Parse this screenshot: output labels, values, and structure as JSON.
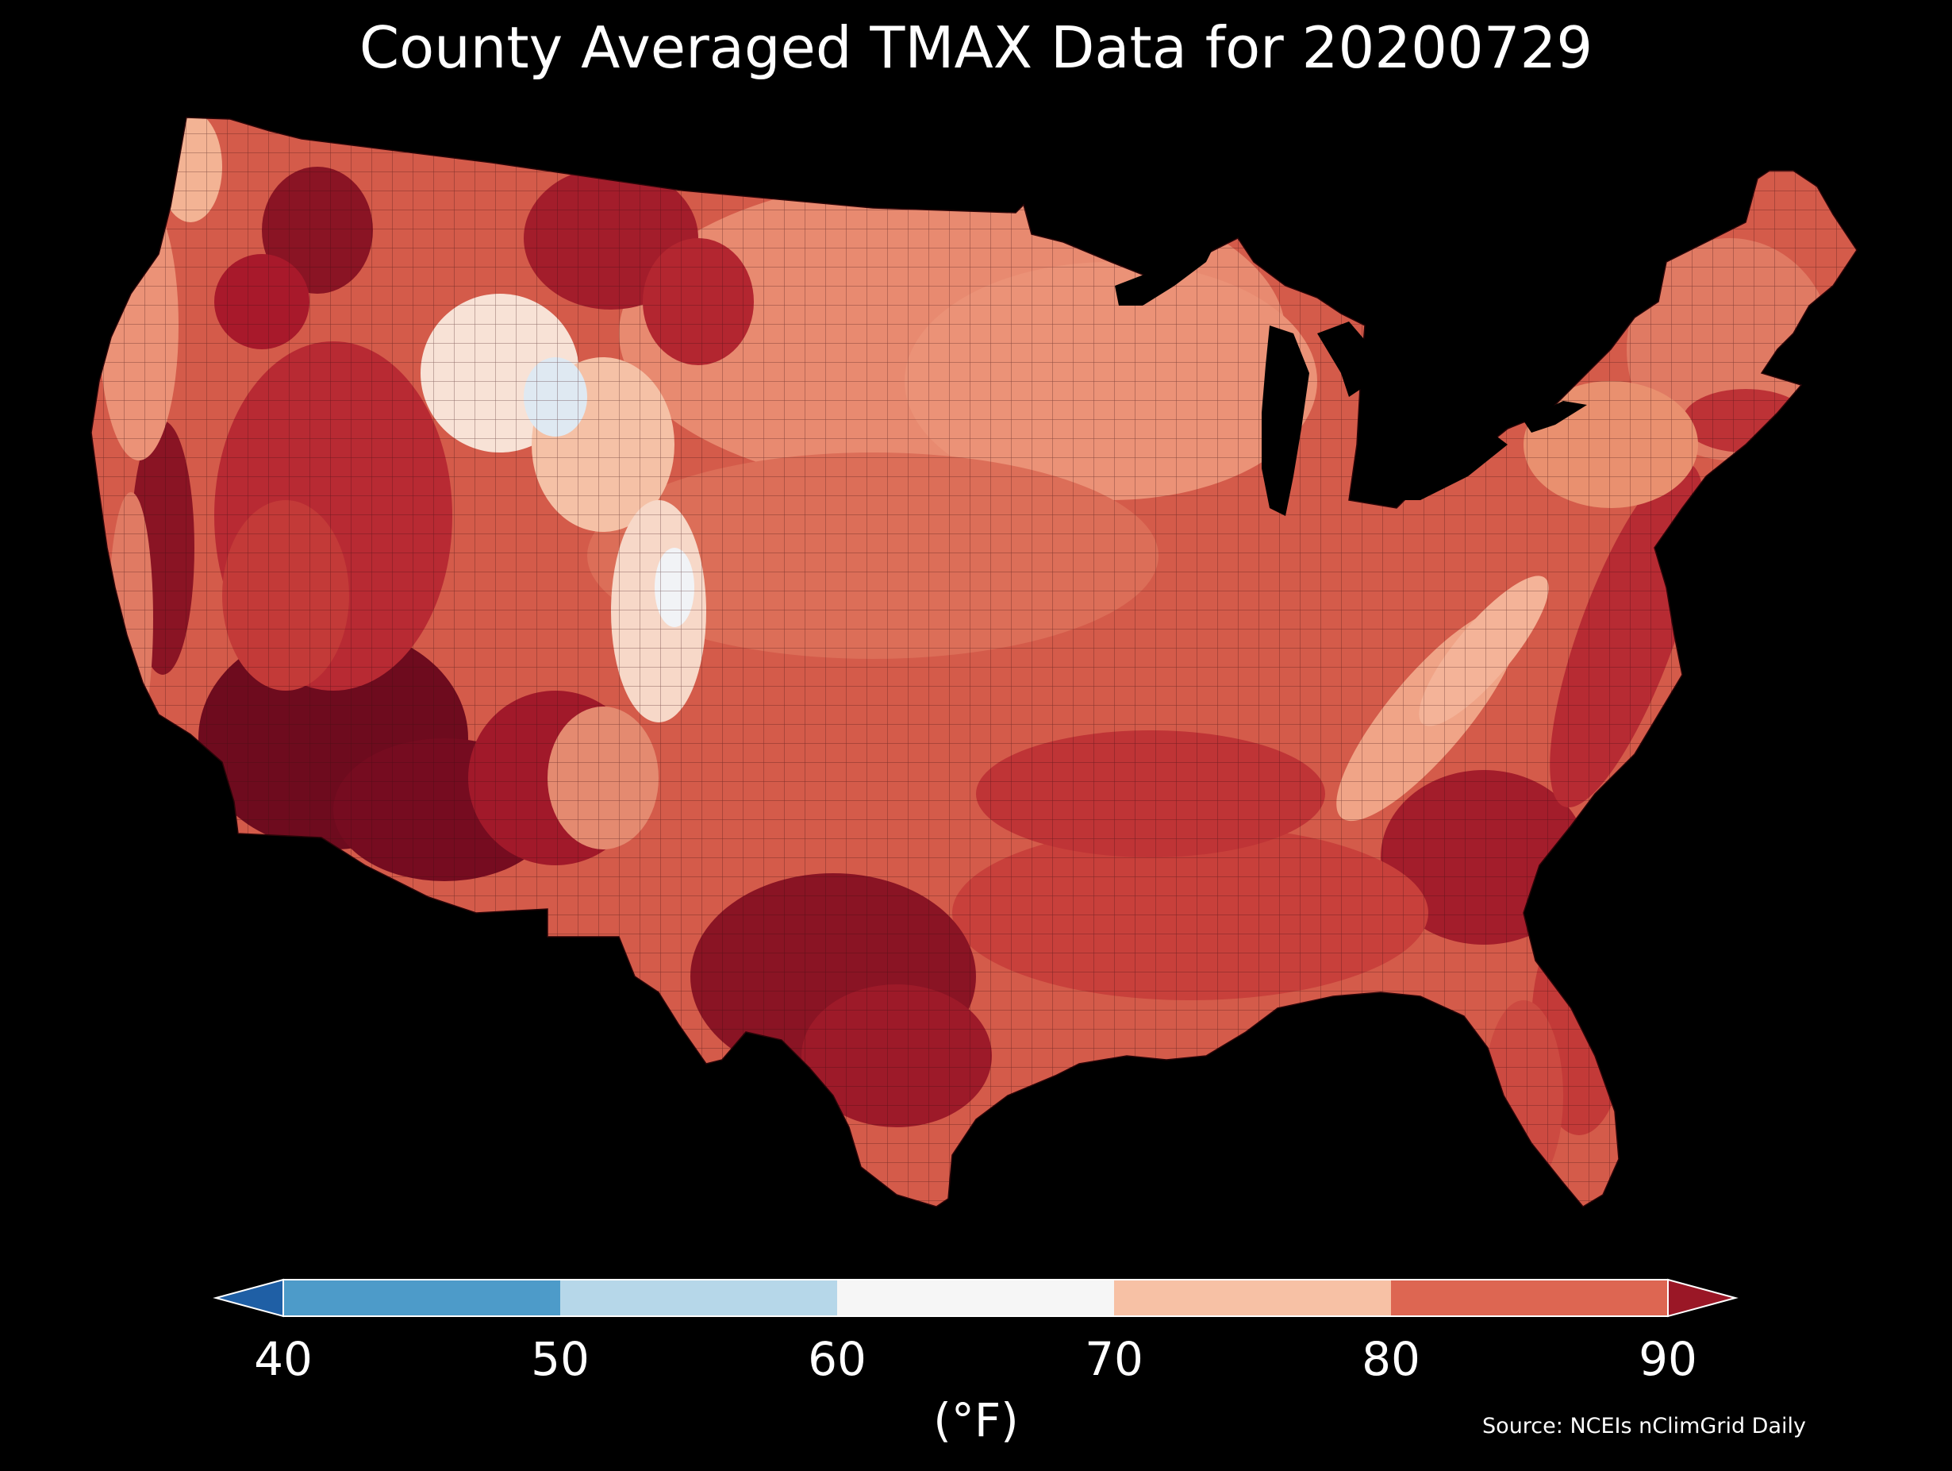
{
  "title": "County Averaged TMAX Data for 20200729",
  "colorbar": {
    "unit_label": "(°F)",
    "ticks": [
      "40",
      "50",
      "60",
      "70",
      "80",
      "90"
    ],
    "bins": [
      {
        "range": "<40",
        "color": "#1f5fa5"
      },
      {
        "range": "40-50",
        "color": "#4d9bc9"
      },
      {
        "range": "50-60",
        "color": "#b6d7e9"
      },
      {
        "range": "60-70",
        "color": "#f6f6f6"
      },
      {
        "range": "70-80",
        "color": "#f7c1a5"
      },
      {
        "range": "80-90",
        "color": "#dd6652"
      },
      {
        "range": ">90",
        "color": "#9a1726"
      }
    ]
  },
  "source": "Source: NCEIs nClimGrid Daily",
  "map": {
    "type": "choropleth",
    "region": "Contiguous United States counties",
    "variable": "TMAX",
    "date": "20200729",
    "scale_min": 40,
    "scale_max": 90,
    "palette_colors": {
      "hot": "#6e0b1e",
      "very_warm": "#a8192b",
      "warm": "#c9403a",
      "mild_warm": "#e07a63",
      "mild": "#f2a586",
      "cool": "#f8dccd",
      "cold": "#f6f6f6",
      "coldest": "#dfe9f2"
    }
  }
}
